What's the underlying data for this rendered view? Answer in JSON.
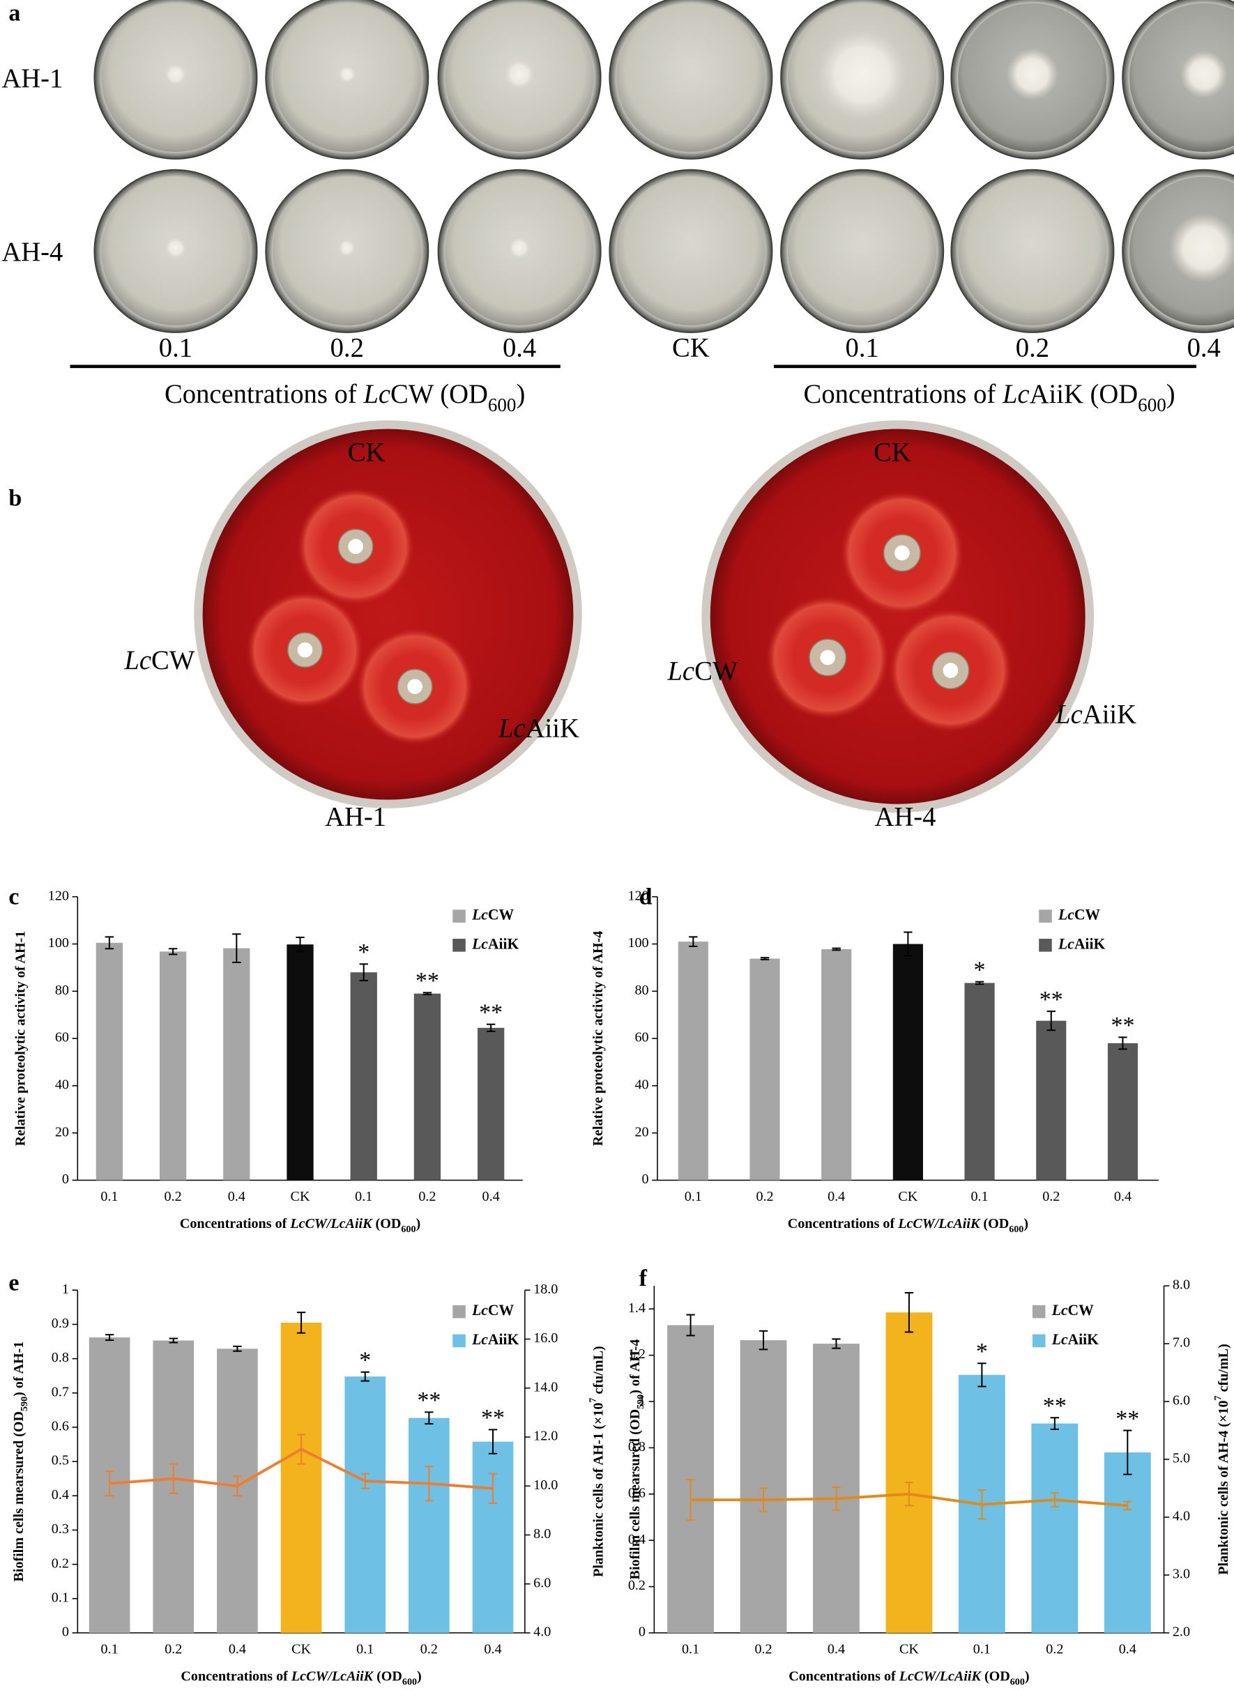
{
  "panels": {
    "labels": [
      "a",
      "b",
      "c",
      "d",
      "e",
      "f"
    ],
    "a": {
      "rows": [
        "AH-1",
        "AH-4"
      ],
      "concentrations": [
        "0.1",
        "0.2",
        "0.4",
        "CK",
        "0.1",
        "0.2",
        "0.4"
      ],
      "groups": [
        [
          {
            "text": "Concentrations of "
          },
          {
            "text": "Lc",
            "style": "italic"
          },
          {
            "text": "CW (OD"
          },
          {
            "text": "600",
            "style": "sub"
          },
          {
            "text": ")"
          }
        ],
        [
          {
            "text": "Concentrations of "
          },
          {
            "text": "Lc",
            "style": "italic"
          },
          {
            "text": "AiiK (OD"
          },
          {
            "text": "600",
            "style": "sub"
          },
          {
            "text": ")"
          }
        ]
      ]
    },
    "b": {
      "plates": [
        {
          "top": "CK",
          "left": [
            {
              "text": "Lc",
              "style": "italic"
            },
            {
              "text": "CW"
            }
          ],
          "right": [
            {
              "text": "Lc",
              "style": "italic"
            },
            {
              "text": "AiiK"
            }
          ],
          "bottom": "AH-1"
        },
        {
          "top": "CK",
          "left": [
            {
              "text": "Lc",
              "style": "italic"
            },
            {
              "text": "CW"
            }
          ],
          "right": [
            {
              "text": "Lc",
              "style": "italic"
            },
            {
              "text": "AiiK"
            }
          ],
          "bottom": "AH-4"
        }
      ]
    }
  },
  "chart_data": [
    {
      "type": "bar",
      "y_label": "Relative proteolytic activity of AH-1",
      "x_label": [
        {
          "text": "Concentrations of "
        },
        {
          "text": "LcCW/LcAiiK",
          "style": "italic"
        },
        {
          "text": " (OD"
        },
        {
          "text": "600",
          "style": "sub"
        },
        {
          "text": ")"
        }
      ],
      "categories": [
        "0.1",
        "0.2",
        "0.4",
        "CK",
        "0.1",
        "0.2",
        "0.4"
      ],
      "values": [
        100.5,
        96.8,
        98.2,
        99.8,
        88,
        79,
        64.5
      ],
      "errors": [
        2.5,
        1.2,
        6,
        3,
        3.5,
        0.4,
        1.5
      ],
      "colors": [
        "#a6a6a6",
        "#a6a6a6",
        "#a6a6a6",
        "#0d0d0d",
        "#595959",
        "#595959",
        "#595959"
      ],
      "significance": [
        null,
        null,
        null,
        null,
        "*",
        "**",
        "**"
      ],
      "legend": [
        {
          "name": [
            {
              "text": "Lc",
              "style": "italic"
            },
            {
              "text": "CW"
            }
          ],
          "color": "#a6a6a6"
        },
        {
          "name": [
            {
              "text": "Lc",
              "style": "italic"
            },
            {
              "text": "AiiK"
            }
          ],
          "color": "#595959"
        }
      ],
      "ylim": [
        0,
        120
      ],
      "yticks": [
        0,
        20,
        40,
        60,
        80,
        100,
        120
      ]
    },
    {
      "type": "bar",
      "y_label": "Relative proteolytic activity of AH-4",
      "x_label": [
        {
          "text": "Concentrations of "
        },
        {
          "text": "LcCW/LcAiiK",
          "style": "italic"
        },
        {
          "text": " (OD"
        },
        {
          "text": "600",
          "style": "sub"
        },
        {
          "text": ")"
        }
      ],
      "categories": [
        "0.1",
        "0.2",
        "0.4",
        "CK",
        "0.1",
        "0.2",
        "0.4"
      ],
      "values": [
        101,
        93.8,
        97.8,
        100,
        83.5,
        67.5,
        58
      ],
      "errors": [
        2,
        0.4,
        0.4,
        5,
        0.5,
        4,
        2.5
      ],
      "colors": [
        "#a6a6a6",
        "#a6a6a6",
        "#a6a6a6",
        "#0d0d0d",
        "#595959",
        "#595959",
        "#595959"
      ],
      "significance": [
        null,
        null,
        null,
        null,
        "*",
        "**",
        "**"
      ],
      "legend": [
        {
          "name": [
            {
              "text": "Lc",
              "style": "italic"
            },
            {
              "text": "CW"
            }
          ],
          "color": "#a6a6a6"
        },
        {
          "name": [
            {
              "text": "Lc",
              "style": "italic"
            },
            {
              "text": "AiiK"
            }
          ],
          "color": "#595959"
        }
      ],
      "ylim": [
        0,
        120
      ],
      "yticks": [
        0,
        20,
        40,
        60,
        80,
        100,
        120
      ]
    },
    {
      "type": "bar",
      "y_label": [
        {
          "text": "Biofilm cells mearsured (OD"
        },
        {
          "text": "590",
          "style": "sub"
        },
        {
          "text": ") of AH-1"
        }
      ],
      "y2_label": [
        {
          "text": "Planktonic cells of AH-1 (×10"
        },
        {
          "text": "7",
          "style": "sup"
        },
        {
          "text": " cfu/mL)"
        }
      ],
      "x_label": [
        {
          "text": "Concentrations of "
        },
        {
          "text": "LcCW/LcAiiK",
          "style": "italic"
        },
        {
          "text": " (OD"
        },
        {
          "text": "600",
          "style": "sub"
        },
        {
          "text": ")"
        }
      ],
      "categories": [
        "0.1",
        "0.2",
        "0.4",
        "CK",
        "0.1",
        "0.2",
        "0.4"
      ],
      "values": [
        0.862,
        0.853,
        0.829,
        0.905,
        0.748,
        0.627,
        0.558
      ],
      "errors": [
        0.008,
        0.006,
        0.007,
        0.03,
        0.013,
        0.017,
        0.035
      ],
      "colors": [
        "#a6a6a6",
        "#a6a6a6",
        "#a6a6a6",
        "#f2b31c",
        "#6ec0e4",
        "#6ec0e4",
        "#6ec0e4"
      ],
      "significance": [
        null,
        null,
        null,
        null,
        "*",
        "**",
        "**"
      ],
      "legend": [
        {
          "name": [
            {
              "text": "Lc",
              "style": "italic"
            },
            {
              "text": "CW"
            }
          ],
          "color": "#a6a6a6"
        },
        {
          "name": [
            {
              "text": "Lc",
              "style": "italic"
            },
            {
              "text": "AiiK"
            }
          ],
          "color": "#6ec0e4"
        }
      ],
      "ylim": [
        0,
        1
      ],
      "yticks": [
        0,
        0.1,
        0.2,
        0.3,
        0.4,
        0.5,
        0.6,
        0.7,
        0.8,
        0.9,
        1
      ],
      "y2lim": [
        4,
        18
      ],
      "y2ticks": [
        {
          "value": 4,
          "label": "4.0"
        },
        {
          "value": 6,
          "label": "6.0"
        },
        {
          "value": 8,
          "label": "8.0"
        },
        {
          "value": 10,
          "label": "10.0"
        },
        {
          "value": 12,
          "label": "12.0"
        },
        {
          "value": 14,
          "label": "14.0"
        },
        {
          "value": 16,
          "label": "16.0"
        },
        {
          "value": 18,
          "label": "18.0"
        }
      ],
      "series": [
        {
          "type": "line",
          "axis": "y2",
          "color": "#ed7d31",
          "values": [
            10.1,
            10.3,
            10.0,
            11.5,
            10.2,
            10.1,
            9.9
          ],
          "errors": [
            0.5,
            0.6,
            0.4,
            0.6,
            0.3,
            0.7,
            0.6
          ]
        }
      ]
    },
    {
      "type": "bar",
      "y_label": [
        {
          "text": "Biofilm cells mearsured (OD"
        },
        {
          "text": "590",
          "style": "sub"
        },
        {
          "text": ") of AH-4"
        }
      ],
      "y2_label": [
        {
          "text": "Planktonic cells of AH-4 (×10"
        },
        {
          "text": "7",
          "style": "sup"
        },
        {
          "text": " cfu/mL)"
        }
      ],
      "x_label": [
        {
          "text": "Concentrations of "
        },
        {
          "text": "LcCW/LcAiiK",
          "style": "italic"
        },
        {
          "text": " (OD"
        },
        {
          "text": "600",
          "style": "sub"
        },
        {
          "text": ")"
        }
      ],
      "categories": [
        "0.1",
        "0.2",
        "0.4",
        "CK",
        "0.1",
        "0.2",
        "0.4"
      ],
      "values": [
        1.33,
        1.265,
        1.25,
        1.385,
        1.115,
        0.905,
        0.78
      ],
      "errors": [
        0.045,
        0.04,
        0.02,
        0.085,
        0.05,
        0.025,
        0.095
      ],
      "colors": [
        "#a6a6a6",
        "#a6a6a6",
        "#a6a6a6",
        "#f2b31c",
        "#6ec0e4",
        "#6ec0e4",
        "#6ec0e4"
      ],
      "significance": [
        null,
        null,
        null,
        null,
        "*",
        "**",
        "**"
      ],
      "legend": [
        {
          "name": [
            {
              "text": "Lc",
              "style": "italic"
            },
            {
              "text": "CW"
            }
          ],
          "color": "#a6a6a6"
        },
        {
          "name": [
            {
              "text": "Lc",
              "style": "italic"
            },
            {
              "text": "AiiK"
            }
          ],
          "color": "#6ec0e4"
        }
      ],
      "ylim": [
        0,
        1.5
      ],
      "yticks": [
        0,
        0.2,
        0.4,
        0.6,
        0.8,
        1,
        1.2,
        1.4
      ],
      "y2lim": [
        2,
        8
      ],
      "y2ticks": [
        {
          "value": 2,
          "label": "2.0"
        },
        {
          "value": 3,
          "label": "3.0"
        },
        {
          "value": 4,
          "label": "4.0"
        },
        {
          "value": 5,
          "label": "5.0"
        },
        {
          "value": 6,
          "label": "6.0"
        },
        {
          "value": 7,
          "label": "7.0"
        },
        {
          "value": 8,
          "label": "8.0"
        }
      ],
      "series": [
        {
          "type": "line",
          "axis": "y2",
          "color": "#e08a1e",
          "values": [
            4.3,
            4.3,
            4.32,
            4.4,
            4.22,
            4.3,
            4.2
          ],
          "errors": [
            0.35,
            0.2,
            0.2,
            0.2,
            0.25,
            0.12,
            0.07
          ]
        }
      ]
    }
  ]
}
